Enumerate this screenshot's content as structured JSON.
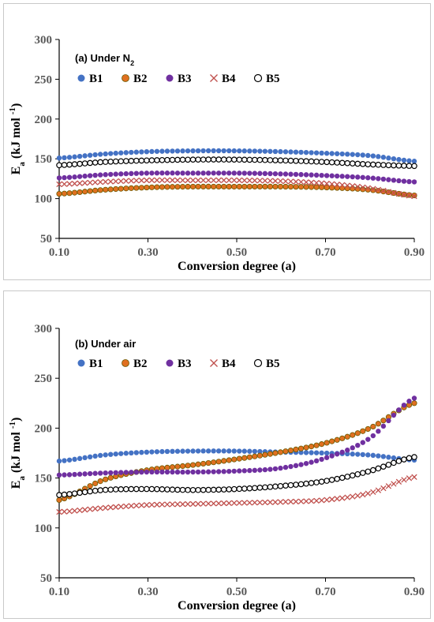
{
  "chart_data": [
    {
      "type": "scatter",
      "panel_label": "(a) Under N",
      "panel_label_sub": "2",
      "xlabel": "Conversion degree (a)",
      "ylabel": "E",
      "ylabel_sub": "a",
      "ylabel_rest": " (kJ mol ",
      "ylabel_sup": "-1",
      "ylabel_end": ")",
      "xlim": [
        0.1,
        0.9
      ],
      "ylim": [
        50,
        300
      ],
      "xticks": [
        "0.10",
        "0.30",
        "0.50",
        "0.70",
        "0.90"
      ],
      "yticks": [
        "50",
        "100",
        "150",
        "200",
        "250",
        "300"
      ],
      "legend_position": "top-left",
      "x": [
        0.1,
        0.2,
        0.3,
        0.4,
        0.5,
        0.6,
        0.7,
        0.8,
        0.9
      ],
      "series": [
        {
          "name": "B1",
          "color": "#4472C4",
          "marker": "dot",
          "values": [
            151,
            156,
            159,
            160,
            160,
            159,
            157,
            154,
            147
          ]
        },
        {
          "name": "B2",
          "color": "#E07020",
          "marker": "dot-outline",
          "values": [
            106,
            111,
            114,
            115,
            115,
            115,
            114,
            111,
            104
          ]
        },
        {
          "name": "B3",
          "color": "#7030A0",
          "marker": "dot",
          "values": [
            126,
            130,
            132,
            132,
            132,
            131,
            129,
            126,
            121
          ]
        },
        {
          "name": "B4",
          "color": "#C0504D",
          "marker": "cross",
          "values": [
            118,
            121,
            123,
            123,
            123,
            122,
            119,
            113,
            103
          ]
        },
        {
          "name": "B5",
          "color": "#000000",
          "marker": "circle-open",
          "values": [
            142,
            146,
            148,
            149,
            149,
            148,
            146,
            143,
            141
          ]
        }
      ]
    },
    {
      "type": "scatter",
      "panel_label": "(b) Under air",
      "panel_label_sub": "",
      "xlabel": "Conversion degree (a)",
      "ylabel": "E",
      "ylabel_sub": "a",
      "ylabel_rest": " (kJ mol ",
      "ylabel_sup": "-1",
      "ylabel_end": ")",
      "xlim": [
        0.1,
        0.9
      ],
      "ylim": [
        50,
        300
      ],
      "xticks": [
        "0.10",
        "0.30",
        "0.50",
        "0.70",
        "0.90"
      ],
      "yticks": [
        "50",
        "100",
        "150",
        "200",
        "250",
        "300"
      ],
      "legend_position": "top-left",
      "x": [
        0.1,
        0.2,
        0.3,
        0.4,
        0.5,
        0.6,
        0.7,
        0.8,
        0.9
      ],
      "series": [
        {
          "name": "B1",
          "color": "#4472C4",
          "marker": "dot",
          "values": [
            167,
            173,
            176,
            177,
            177,
            176,
            175,
            173,
            168
          ]
        },
        {
          "name": "B2",
          "color": "#E07020",
          "marker": "dot-outline",
          "values": [
            128,
            148,
            158,
            163,
            169,
            176,
            185,
            200,
            225
          ]
        },
        {
          "name": "B3",
          "color": "#7030A0",
          "marker": "dot",
          "values": [
            153,
            155,
            156,
            156,
            157,
            160,
            170,
            190,
            230
          ]
        },
        {
          "name": "B4",
          "color": "#C0504D",
          "marker": "cross",
          "values": [
            116,
            120,
            123,
            124,
            125,
            126,
            128,
            135,
            151
          ]
        },
        {
          "name": "B5",
          "color": "#000000",
          "marker": "circle-open",
          "values": [
            133,
            138,
            139,
            138,
            139,
            142,
            147,
            157,
            171
          ]
        }
      ]
    }
  ]
}
